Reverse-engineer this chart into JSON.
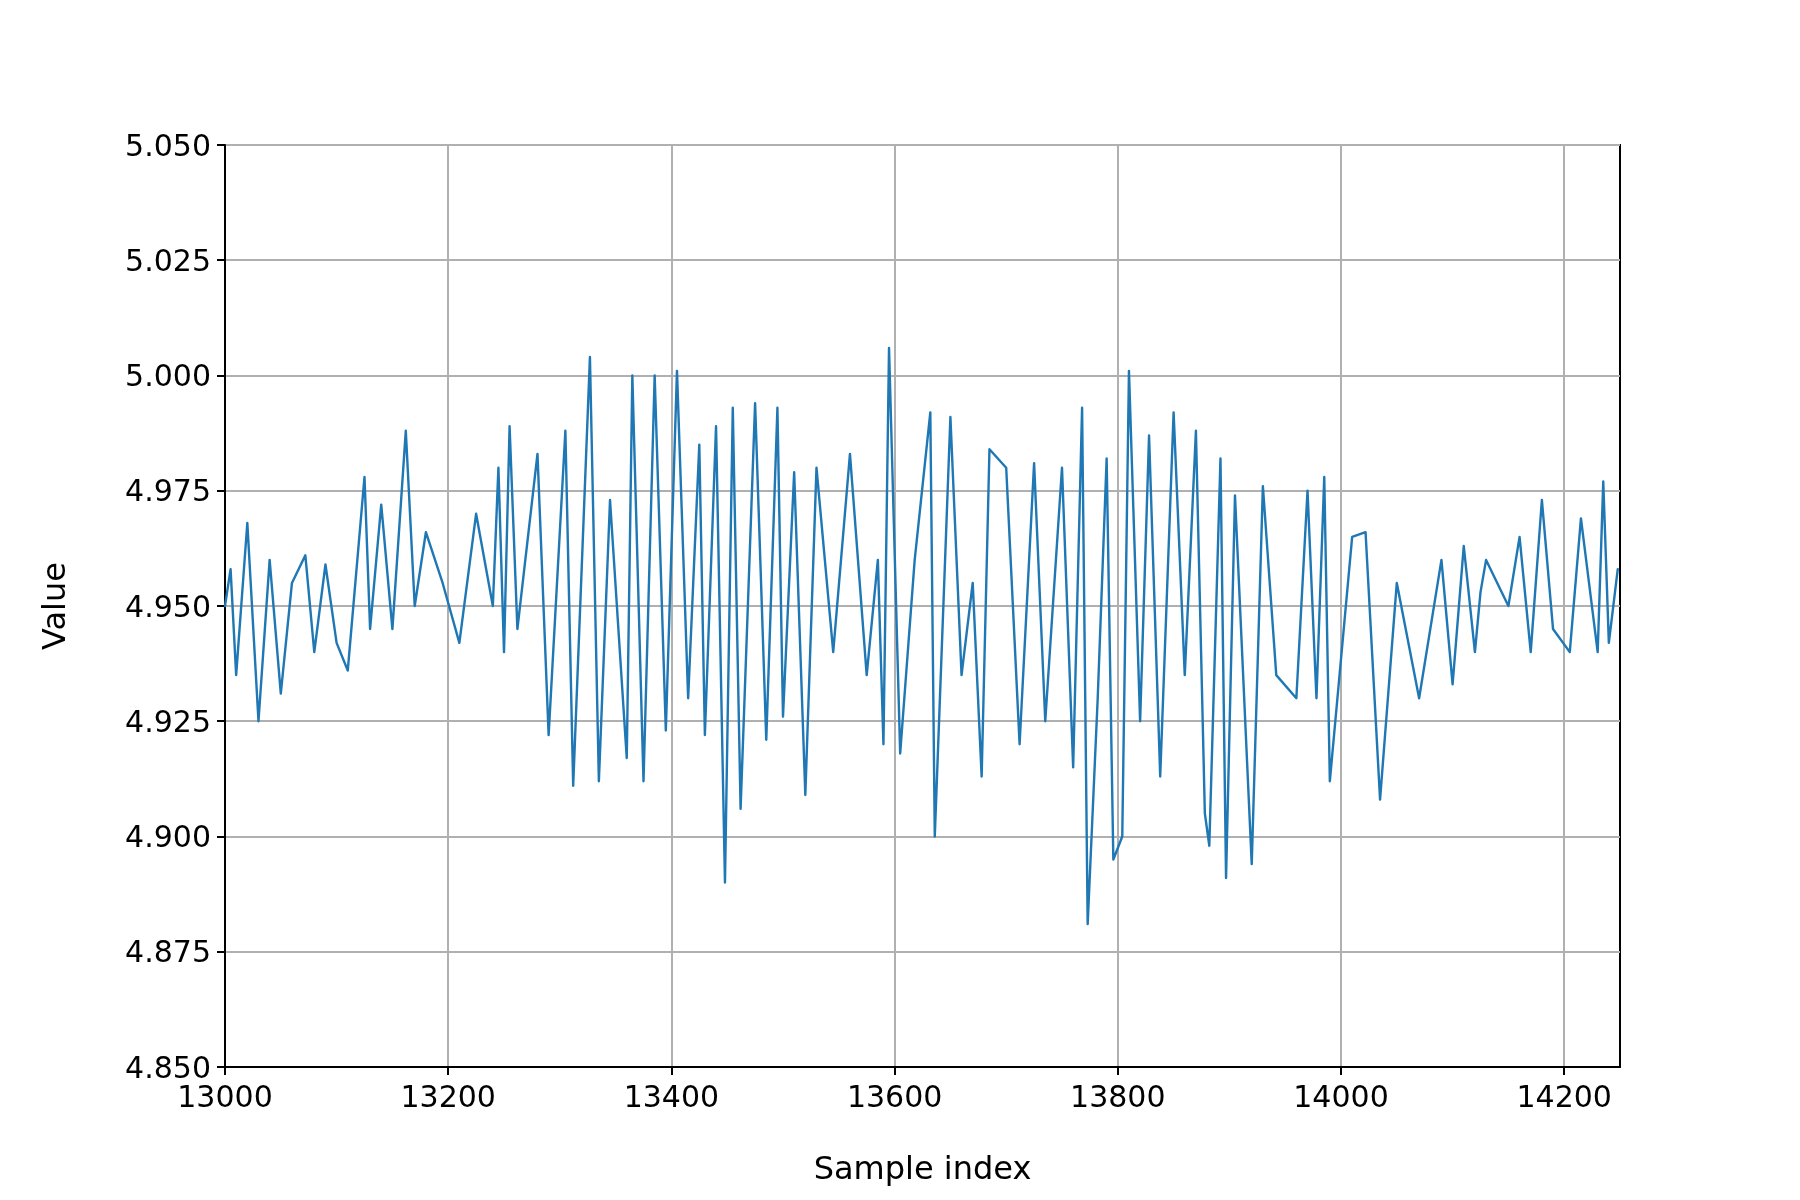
{
  "chart_data": {
    "type": "line",
    "xlabel": "Sample index",
    "ylabel": "Value",
    "grid": true,
    "marker": "none",
    "line_style": "solid",
    "xlim": [
      13000,
      14250
    ],
    "xticks": [
      13000,
      13200,
      13400,
      13600,
      13800,
      14000,
      14200
    ],
    "ylim": [
      4.85,
      5.05
    ],
    "yticks": [
      {
        "value": 4.85,
        "label": "4.850"
      },
      {
        "value": 4.875,
        "label": "4.875"
      },
      {
        "value": 4.9,
        "label": "4.900"
      },
      {
        "value": 4.925,
        "label": "4.925"
      },
      {
        "value": 4.95,
        "label": "4.950"
      },
      {
        "value": 4.975,
        "label": "4.975"
      },
      {
        "value": 5.0,
        "label": "5.000"
      },
      {
        "value": 5.025,
        "label": "5.025"
      },
      {
        "value": 5.05,
        "label": "5.050"
      }
    ],
    "series": [
      {
        "color": "#1f77b4",
        "x": [
          13000,
          13005,
          13010,
          13020,
          13030,
          13040,
          13050,
          13060,
          13072,
          13080,
          13090,
          13100,
          13110,
          13125,
          13130,
          13140,
          13150,
          13162,
          13170,
          13180,
          13195,
          13210,
          13225,
          13240,
          13245,
          13250,
          13255,
          13262,
          13280,
          13290,
          13305,
          13312,
          13327,
          13335,
          13345,
          13360,
          13365,
          13375,
          13385,
          13395,
          13405,
          13415,
          13425,
          13430,
          13440,
          13448,
          13455,
          13462,
          13475,
          13485,
          13495,
          13500,
          13510,
          13520,
          13530,
          13545,
          13560,
          13575,
          13585,
          13590,
          13595,
          13605,
          13618,
          13632,
          13636,
          13650,
          13660,
          13670,
          13678,
          13685,
          13700,
          13712,
          13725,
          13735,
          13750,
          13760,
          13768,
          13773,
          13782,
          13790,
          13796,
          13804,
          13810,
          13820,
          13828,
          13838,
          13850,
          13860,
          13870,
          13878,
          13882,
          13892,
          13897,
          13905,
          13920,
          13930,
          13942,
          13960,
          13970,
          13978,
          13985,
          13990,
          14010,
          14022,
          14035,
          14050,
          14070,
          14090,
          14100,
          14110,
          14120,
          14125,
          14130,
          14150,
          14160,
          14170,
          14180,
          14190,
          14205,
          14215,
          14230,
          14235,
          14240,
          14248
        ],
        "values": [
          4.95,
          4.958,
          4.935,
          4.968,
          4.925,
          4.96,
          4.931,
          4.955,
          4.961,
          4.94,
          4.959,
          4.942,
          4.936,
          4.978,
          4.945,
          4.972,
          4.945,
          4.988,
          4.95,
          4.966,
          4.955,
          4.942,
          4.97,
          4.95,
          4.98,
          4.94,
          4.989,
          4.945,
          4.983,
          4.922,
          4.988,
          4.911,
          5.004,
          4.912,
          4.973,
          4.917,
          5.0,
          4.912,
          5.0,
          4.923,
          5.001,
          4.93,
          4.985,
          4.922,
          4.989,
          4.89,
          4.993,
          4.906,
          4.994,
          4.921,
          4.993,
          4.926,
          4.979,
          4.909,
          4.98,
          4.94,
          4.983,
          4.935,
          4.96,
          4.92,
          5.006,
          4.918,
          4.96,
          4.992,
          4.9,
          4.991,
          4.935,
          4.955,
          4.913,
          4.984,
          4.98,
          4.92,
          4.981,
          4.925,
          4.98,
          4.915,
          4.993,
          4.881,
          4.93,
          4.982,
          4.895,
          4.9,
          5.001,
          4.925,
          4.987,
          4.913,
          4.992,
          4.935,
          4.988,
          4.905,
          4.898,
          4.982,
          4.891,
          4.974,
          4.894,
          4.976,
          4.935,
          4.93,
          4.975,
          4.93,
          4.978,
          4.912,
          4.965,
          4.966,
          4.908,
          4.955,
          4.93,
          4.96,
          4.933,
          4.963,
          4.94,
          4.953,
          4.96,
          4.95,
          4.965,
          4.94,
          4.973,
          4.945,
          4.94,
          4.969,
          4.94,
          4.977,
          4.942,
          4.958
        ]
      }
    ]
  }
}
